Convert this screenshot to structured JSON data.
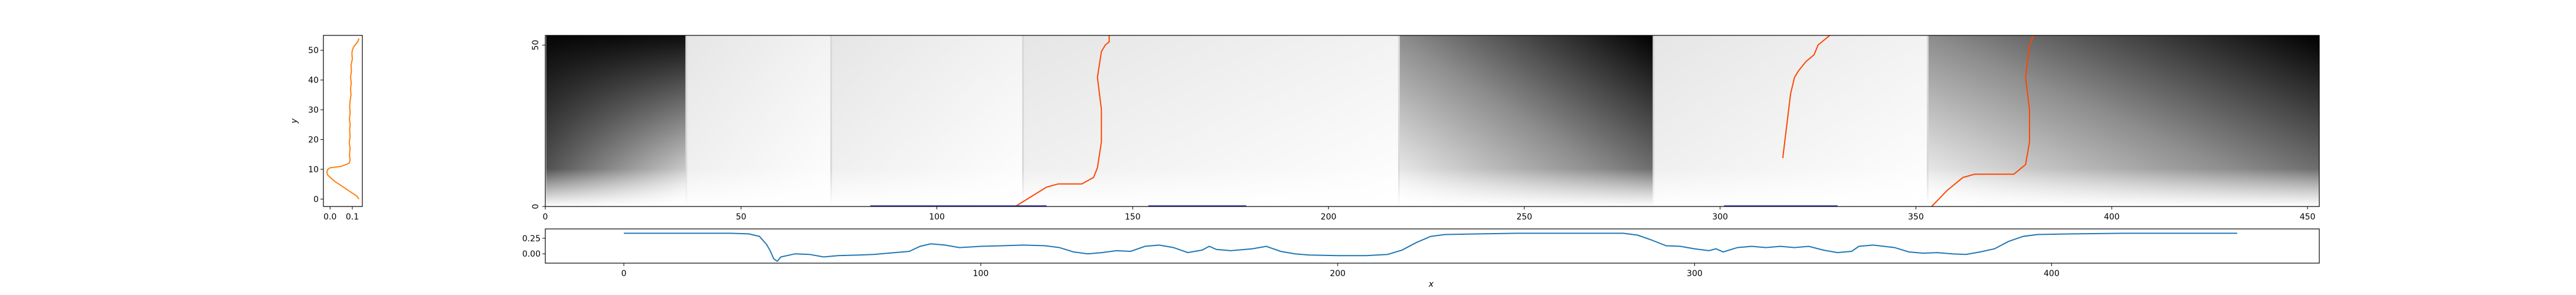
{
  "chart_data": [
    {
      "type": "line",
      "panel": "left-profile",
      "xlabel": "",
      "ylabel": "y",
      "xlim": [
        -0.03,
        0.145
      ],
      "ylim": [
        -2.5,
        55
      ],
      "xticks": [
        "0.0",
        "0.1"
      ],
      "yticks": [
        "0",
        "10",
        "20",
        "30",
        "40",
        "50"
      ],
      "series": [
        {
          "color": "#ff7f0e",
          "points": [
            [
              0.13,
              0
            ],
            [
              0.12,
              1
            ],
            [
              0.1,
              2
            ],
            [
              0.08,
              3
            ],
            [
              0.06,
              4
            ],
            [
              0.04,
              5
            ],
            [
              0.02,
              6
            ],
            [
              0.005,
              7
            ],
            [
              -0.01,
              8
            ],
            [
              -0.015,
              9
            ],
            [
              -0.01,
              10
            ],
            [
              0.0,
              10.5
            ],
            [
              0.05,
              11
            ],
            [
              0.085,
              12
            ],
            [
              0.09,
              13
            ],
            [
              0.087,
              15
            ],
            [
              0.09,
              17
            ],
            [
              0.086,
              19
            ],
            [
              0.09,
              21
            ],
            [
              0.088,
              23
            ],
            [
              0.09,
              25
            ],
            [
              0.087,
              27
            ],
            [
              0.09,
              29
            ],
            [
              0.088,
              31
            ],
            [
              0.09,
              33
            ],
            [
              0.094,
              35
            ],
            [
              0.092,
              37
            ],
            [
              0.095,
              39
            ],
            [
              0.092,
              41
            ],
            [
              0.096,
              43
            ],
            [
              0.094,
              45
            ],
            [
              0.1,
              47
            ],
            [
              0.098,
              49
            ],
            [
              0.1,
              50
            ],
            [
              0.105,
              51
            ],
            [
              0.115,
              52
            ],
            [
              0.125,
              53
            ],
            [
              0.13,
              54
            ]
          ]
        }
      ]
    },
    {
      "type": "heatmap",
      "panel": "main-heatmap",
      "xlim": [
        0,
        453
      ],
      "ylim": [
        0,
        53
      ],
      "xticks": [
        "0",
        "50",
        "100",
        "150",
        "200",
        "250",
        "300",
        "350",
        "400",
        "450"
      ],
      "yticks": [
        "0",
        "50"
      ],
      "colormap": "gray_r",
      "segments": [
        {
          "x0": 0,
          "x1": 36,
          "dark": "top-left"
        },
        {
          "x0": 36,
          "x1": 73,
          "dark": "none"
        },
        {
          "x0": 73,
          "x1": 122,
          "dark": "none"
        },
        {
          "x0": 122,
          "x1": 218,
          "dark": "none"
        },
        {
          "x0": 218,
          "x1": 283,
          "dark": "top-right"
        },
        {
          "x0": 283,
          "x1": 353,
          "dark": "none"
        },
        {
          "x0": 353,
          "x1": 453,
          "dark": "top-right"
        }
      ],
      "series": [
        {
          "color": "#ff4500",
          "points": [
            [
              120,
              0
            ],
            [
              124,
              3
            ],
            [
              128,
              6
            ],
            [
              131,
              7
            ],
            [
              137,
              7
            ],
            [
              140,
              9
            ],
            [
              141,
              12
            ],
            [
              142,
              20
            ],
            [
              142,
              30
            ],
            [
              141,
              40
            ],
            [
              142,
              48
            ],
            [
              143,
              50
            ],
            [
              144,
              51
            ],
            [
              144,
              53
            ]
          ]
        },
        {
          "color": "#ff4500",
          "points": [
            [
              316,
              15
            ],
            [
              317,
              25
            ],
            [
              318,
              35
            ],
            [
              319,
              40
            ],
            [
              320,
              42
            ],
            [
              322,
              45
            ],
            [
              324,
              47
            ],
            [
              325,
              50
            ],
            [
              327,
              52
            ],
            [
              328,
              53
            ]
          ]
        },
        {
          "color": "#ff4500",
          "points": [
            [
              354,
              0
            ],
            [
              358,
              5
            ],
            [
              362,
              9
            ],
            [
              365,
              10
            ],
            [
              375,
              10
            ],
            [
              378,
              13
            ],
            [
              379,
              20
            ],
            [
              379,
              30
            ],
            [
              378,
              40
            ],
            [
              379,
              50
            ],
            [
              380,
              53
            ]
          ]
        }
      ],
      "segments_lines": [
        {
          "color": "#4040c0",
          "x0": 83,
          "x1": 128,
          "y": 0
        },
        {
          "color": "#4040c0",
          "x0": 154,
          "x1": 179,
          "y": 0
        },
        {
          "color": "#4040c0",
          "x0": 301,
          "x1": 330,
          "y": 0
        }
      ]
    },
    {
      "type": "line",
      "panel": "bottom-profile",
      "xlabel": "x",
      "ylabel": "",
      "xlim": [
        -22,
        475
      ],
      "ylim": [
        -0.15,
        0.4
      ],
      "xticks": [
        "0",
        "100",
        "200",
        "300",
        "400"
      ],
      "yticks": [
        "0.00",
        "0.25"
      ],
      "series": [
        {
          "color": "#1f77b4",
          "points": [
            [
              0,
              0.33
            ],
            [
              10,
              0.33
            ],
            [
              20,
              0.33
            ],
            [
              30,
              0.33
            ],
            [
              35,
              0.32
            ],
            [
              38,
              0.28
            ],
            [
              40,
              0.15
            ],
            [
              41,
              0.05
            ],
            [
              42,
              -0.08
            ],
            [
              43,
              -0.12
            ],
            [
              44,
              -0.05
            ],
            [
              48,
              0.0
            ],
            [
              52,
              -0.01
            ],
            [
              56,
              -0.05
            ],
            [
              60,
              -0.03
            ],
            [
              66,
              -0.02
            ],
            [
              70,
              -0.01
            ],
            [
              76,
              0.02
            ],
            [
              80,
              0.04
            ],
            [
              83,
              0.12
            ],
            [
              86,
              0.16
            ],
            [
              90,
              0.14
            ],
            [
              94,
              0.1
            ],
            [
              100,
              0.12
            ],
            [
              106,
              0.13
            ],
            [
              112,
              0.14
            ],
            [
              118,
              0.13
            ],
            [
              122,
              0.1
            ],
            [
              126,
              0.03
            ],
            [
              130,
              0.0
            ],
            [
              134,
              0.02
            ],
            [
              138,
              0.05
            ],
            [
              142,
              0.04
            ],
            [
              146,
              0.12
            ],
            [
              150,
              0.14
            ],
            [
              154,
              0.1
            ],
            [
              158,
              0.02
            ],
            [
              162,
              0.06
            ],
            [
              164,
              0.12
            ],
            [
              166,
              0.07
            ],
            [
              170,
              0.05
            ],
            [
              176,
              0.08
            ],
            [
              180,
              0.12
            ],
            [
              184,
              0.04
            ],
            [
              188,
              0.0
            ],
            [
              192,
              -0.02
            ],
            [
              200,
              -0.03
            ],
            [
              208,
              -0.03
            ],
            [
              214,
              -0.01
            ],
            [
              218,
              0.06
            ],
            [
              222,
              0.18
            ],
            [
              226,
              0.28
            ],
            [
              230,
              0.31
            ],
            [
              240,
              0.32
            ],
            [
              250,
              0.33
            ],
            [
              260,
              0.33
            ],
            [
              270,
              0.33
            ],
            [
              280,
              0.33
            ],
            [
              284,
              0.3
            ],
            [
              288,
              0.22
            ],
            [
              292,
              0.13
            ],
            [
              296,
              0.12
            ],
            [
              300,
              0.08
            ],
            [
              304,
              0.05
            ],
            [
              306,
              0.08
            ],
            [
              308,
              0.03
            ],
            [
              312,
              0.1
            ],
            [
              316,
              0.12
            ],
            [
              320,
              0.1
            ],
            [
              324,
              0.12
            ],
            [
              328,
              0.1
            ],
            [
              332,
              0.12
            ],
            [
              336,
              0.06
            ],
            [
              340,
              0.02
            ],
            [
              344,
              0.04
            ],
            [
              346,
              0.12
            ],
            [
              350,
              0.14
            ],
            [
              356,
              0.1
            ],
            [
              360,
              0.03
            ],
            [
              364,
              0.01
            ],
            [
              368,
              0.02
            ],
            [
              372,
              0.0
            ],
            [
              376,
              -0.01
            ],
            [
              380,
              0.03
            ],
            [
              384,
              0.08
            ],
            [
              388,
              0.2
            ],
            [
              392,
              0.28
            ],
            [
              396,
              0.31
            ],
            [
              406,
              0.32
            ],
            [
              420,
              0.33
            ],
            [
              440,
              0.33
            ],
            [
              452,
              0.33
            ]
          ]
        }
      ]
    }
  ]
}
